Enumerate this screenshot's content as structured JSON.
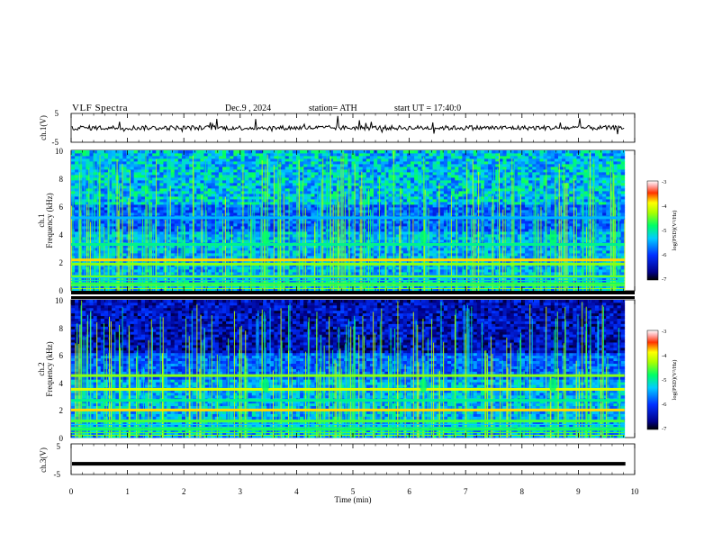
{
  "header": {
    "title": "VLF  Spectra",
    "date": "Dec.9  , 2024",
    "station": "station= ATH",
    "start": "start  UT  =   17:40:0"
  },
  "chart_data": {
    "type": "heatmap",
    "x_axis": {
      "label": "Time  (min)",
      "range": [
        0,
        10
      ],
      "ticks": [
        "0",
        "1",
        "2",
        "3",
        "4",
        "5",
        "6",
        "7",
        "8",
        "9",
        "10"
      ]
    },
    "panels": [
      {
        "id": "ch1-waveform",
        "type": "line",
        "ylabel": "ch.1(V)",
        "ylim": [
          -5,
          5
        ],
        "yticks": [
          "5",
          "-5"
        ],
        "level_approx": 0
      },
      {
        "id": "ch1-spectrogram",
        "type": "heatmap",
        "ylabel": "Frequency (kHz)",
        "channel_label": "ch.1",
        "ylim": [
          0,
          10
        ],
        "yticks": [
          "0",
          "2",
          "4",
          "6",
          "8",
          "10"
        ],
        "colorbar": {
          "label": "log(PSD)(V²/Hz)",
          "range": [
            -7,
            -3
          ],
          "ticks": [
            "-3",
            "-4",
            "-5",
            "-6",
            "-7"
          ]
        },
        "bands_khz": [
          {
            "freq": 2.2,
            "level": -4.0
          },
          {
            "freq": 1.9,
            "level": -4.6
          },
          {
            "freq": 1.0,
            "level": -4.7
          },
          {
            "freq": 0.5,
            "level": -4.8
          },
          {
            "freq": 3.3,
            "level": -5.1
          },
          {
            "freq": 5.2,
            "level": -5.5
          }
        ],
        "bursts_min": [
          3.45,
          6.25,
          8.55
        ]
      },
      {
        "id": "ch2-spectrogram",
        "type": "heatmap",
        "ylabel": "Frequency (kHz)",
        "channel_label": "ch.2",
        "ylim": [
          0,
          10
        ],
        "yticks": [
          "0",
          "2",
          "4",
          "6",
          "8",
          "10"
        ],
        "colorbar": {
          "label": "log(PSD)(V²/Hz)",
          "range": [
            -7,
            -3
          ],
          "ticks": [
            "-3",
            "-4",
            "-5",
            "-6",
            "-7"
          ]
        },
        "bands_khz": [
          {
            "freq": 2.0,
            "level": -4.0
          },
          {
            "freq": 3.5,
            "level": -4.3
          },
          {
            "freq": 4.5,
            "level": -4.6
          },
          {
            "freq": 1.2,
            "level": -4.8
          },
          {
            "freq": 0.6,
            "level": -4.9
          },
          {
            "freq": 2.7,
            "level": -5.1
          }
        ],
        "bursts_min": [
          3.45,
          6.25,
          8.55
        ]
      },
      {
        "id": "ch3-waveform",
        "type": "line",
        "ylabel": "ch.3(V)",
        "ylim": [
          -5,
          5
        ],
        "yticks": [
          "5",
          "-5"
        ],
        "level_approx": -1.5
      }
    ]
  }
}
